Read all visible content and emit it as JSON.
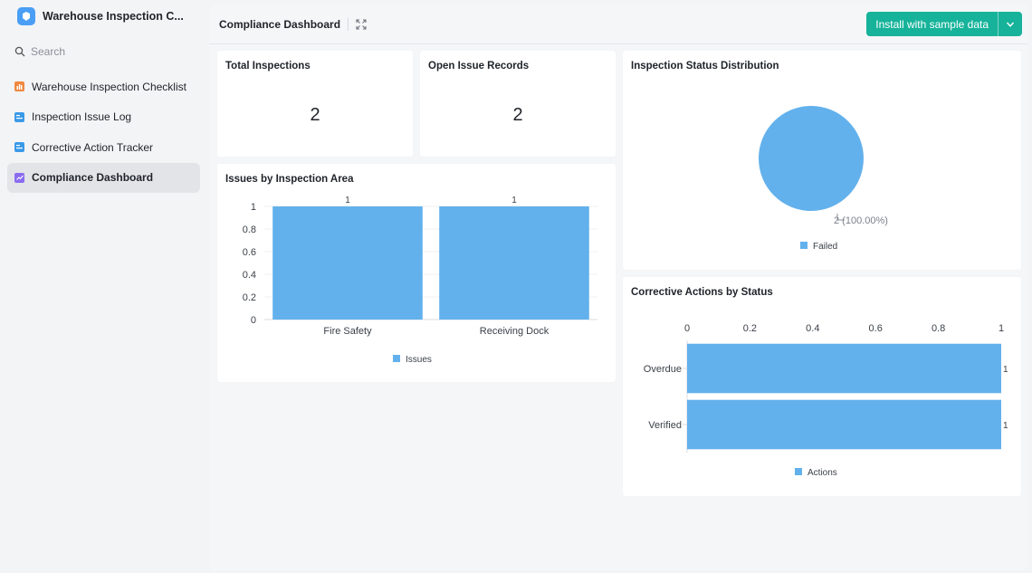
{
  "sidebar": {
    "app_title": "Warehouse Inspection C...",
    "search_placeholder": "Search",
    "items": [
      {
        "label": "Warehouse Inspection Checklist",
        "icon": "table-icon",
        "color": "#f0883e"
      },
      {
        "label": "Inspection Issue Log",
        "icon": "form-icon",
        "color": "#3b9ae8"
      },
      {
        "label": "Corrective Action Tracker",
        "icon": "form-icon",
        "color": "#3b9ae8"
      },
      {
        "label": "Compliance Dashboard",
        "icon": "dashboard-icon",
        "color": "#8b6cf0"
      }
    ]
  },
  "header": {
    "title": "Compliance Dashboard",
    "install_label": "Install with sample data"
  },
  "cards": {
    "total_inspections": {
      "title": "Total Inspections",
      "value": "2"
    },
    "open_issues": {
      "title": "Open Issue Records",
      "value": "2"
    },
    "issues_by_area": {
      "title": "Issues by Inspection Area"
    },
    "status_distribution": {
      "title": "Inspection Status Distribution"
    },
    "actions_by_status": {
      "title": "Corrective Actions by Status"
    }
  },
  "colors": {
    "accent": "#16b39a",
    "bar": "#63b1ec"
  },
  "chart_data": [
    {
      "type": "bar",
      "title": "Issues by Inspection Area",
      "categories": [
        "Fire Safety",
        "Receiving Dock"
      ],
      "series": [
        {
          "name": "Issues",
          "values": [
            1,
            1
          ]
        }
      ],
      "ylim": [
        0,
        1
      ],
      "yticks": [
        "0",
        "0.2",
        "0.4",
        "0.6",
        "0.8",
        "1"
      ],
      "data_labels": [
        "1",
        "1"
      ],
      "legend": "bottom"
    },
    {
      "type": "pie",
      "title": "Inspection Status Distribution",
      "slices": [
        {
          "name": "Failed",
          "value": 2,
          "label": "2 (100.00%)"
        }
      ],
      "legend": "bottom"
    },
    {
      "type": "bar",
      "orientation": "horizontal",
      "title": "Corrective Actions by Status",
      "categories": [
        "Overdue",
        "Verified"
      ],
      "series": [
        {
          "name": "Actions",
          "values": [
            1,
            1
          ]
        }
      ],
      "xlim": [
        0,
        1
      ],
      "xticks": [
        "0",
        "0.2",
        "0.4",
        "0.6",
        "0.8",
        "1"
      ],
      "data_labels": [
        "1",
        "1"
      ],
      "legend": "bottom"
    }
  ]
}
